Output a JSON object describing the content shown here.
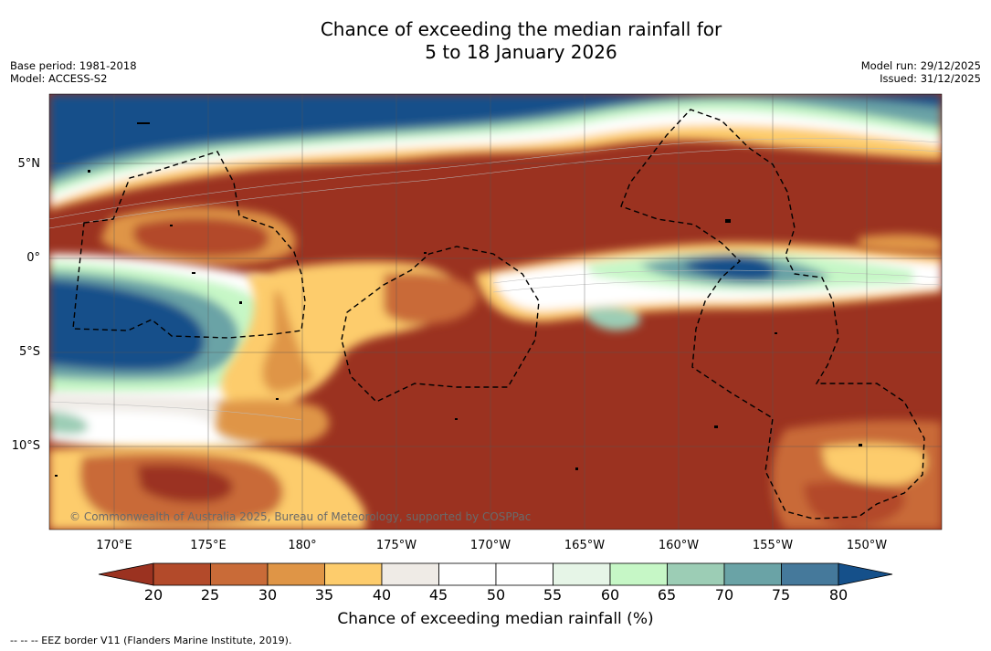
{
  "header": {
    "title_line1": "Chance of exceeding the median rainfall for",
    "title_line2": "5 to 18 January 2026",
    "base_period": "Base period: 1981-2018",
    "model": "Model: ACCESS-S2",
    "model_run": "Model run: 29/12/2025",
    "issued": "Issued: 31/12/2025"
  },
  "map": {
    "lat_labels": [
      "5°N",
      "0°",
      "5°S",
      "10°S"
    ],
    "lon_labels": [
      "170°E",
      "175°E",
      "180°",
      "175°W",
      "170°W",
      "165°W",
      "160°W",
      "155°W",
      "150°W"
    ],
    "copyright": "© Commonwealth of Australia 2025, Bureau of Meteorology, supported by COSPPac"
  },
  "legend": {
    "ticks": [
      "20",
      "25",
      "30",
      "35",
      "40",
      "45",
      "50",
      "55",
      "60",
      "65",
      "70",
      "75",
      "80"
    ],
    "colors": [
      "#9b3220",
      "#b34a2a",
      "#c96b38",
      "#df9546",
      "#fdcc6c",
      "#efebe6",
      "#ffffff",
      "#ffffff",
      "#e6f5e7",
      "#c6f7c6",
      "#9ccdb5",
      "#6aa3a6",
      "#45799b",
      "#15508a"
    ],
    "title": "Chance of exceeding median rainfall (%)"
  },
  "footer": {
    "note": "--  --  -- EEZ border V11 (Flanders Marine Institute, 2019)."
  }
}
